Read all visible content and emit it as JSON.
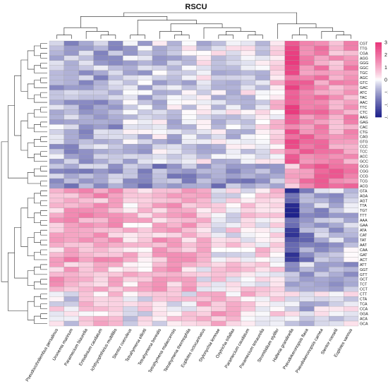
{
  "chart_data": {
    "type": "heatmap",
    "title": "RSCU",
    "colorbar": {
      "ticks": [
        3,
        2,
        1,
        0,
        -1,
        -2,
        -3
      ],
      "colors": {
        "low": "#1c1f8a",
        "mid": "#ffffff",
        "high": "#e8357a"
      }
    },
    "columns": [
      "Pseudocohnilembus persalinus",
      "Uronema marinum",
      "Paramecium biaurelia",
      "Entodinium caudatum",
      "Ichthyophthirius multifiliis",
      "Stentor coeruleus",
      "Tetrahymena elliotti",
      "Tetrahymena borealis",
      "Tetrahymena malaccensis",
      "Tetrahymena thermophila",
      "Euplotes octocarinatus",
      "Stylonychia lemnae",
      "Oxytricha trifallax",
      "Paramecium caudatum",
      "Paramecium tetraurelia",
      "Strombidium stylifer",
      "Halteria grandinella",
      "Pseudokeronopsis flava",
      "Pseudokeronopsis carnea",
      "Stentor roeselii",
      "Euplotes vannus"
    ],
    "rows": [
      "CGT",
      "TTG",
      "CGA",
      "AGG",
      "GGG",
      "GGC",
      "TGC",
      "AGC",
      "GTC",
      "GAC",
      "ATC",
      "TAC",
      "AAC",
      "TTC",
      "CTC",
      "AAG",
      "GAG",
      "CAC",
      "CTG",
      "CAG",
      "GTG",
      "CCC",
      "TCC",
      "ACC",
      "GCC",
      "GCG",
      "CGG",
      "CCG",
      "TCG",
      "ACG",
      "GTA",
      "AGA",
      "AGT",
      "TTA",
      "TGT",
      "TTT",
      "AAA",
      "GAA",
      "ATA",
      "CAT",
      "TAT",
      "AAT",
      "CAA",
      "GAT",
      "ACT",
      "ATT",
      "GGT",
      "GTT",
      "GCT",
      "TCT",
      "CCT",
      "CTT",
      "CTA",
      "TCA",
      "CCA",
      "GGA",
      "ACA",
      "GCA"
    ],
    "row_groups": [
      {
        "rows": "CGT-GCC",
        "values_by_column": [
          -0.7,
          -0.9,
          -0.8,
          -0.8,
          -0.9,
          -0.5,
          -0.6,
          -0.5,
          -0.5,
          -0.4,
          -0.3,
          -0.3,
          -0.3,
          -0.2,
          -0.2,
          0.4,
          2.2,
          1.7,
          1.5,
          1.2,
          1.3
        ]
      },
      {
        "rows": "GCG-ACG",
        "values_by_column": [
          -0.9,
          -1.0,
          -1.0,
          -1.0,
          -1.0,
          -1.0,
          -1.1,
          -1.1,
          -1.1,
          -1.1,
          -0.8,
          -1.2,
          -0.9,
          -1.1,
          -1.1,
          -0.8,
          1.1,
          1.5,
          2.0,
          1.9,
          1.6
        ]
      },
      {
        "rows": "GTA-ACT",
        "values_by_column": [
          0.8,
          1.2,
          1.2,
          1.1,
          1.0,
          0.5,
          0.6,
          0.9,
          0.9,
          0.8,
          0.5,
          -0.1,
          0.2,
          0.3,
          0.3,
          0.4,
          -2.3,
          -1.2,
          -0.9,
          -0.7,
          -0.5
        ]
      },
      {
        "rows": "ATT-CCT",
        "values_by_column": [
          0.9,
          0.7,
          0.8,
          0.8,
          0.7,
          0.5,
          0.7,
          0.9,
          0.9,
          0.8,
          0.1,
          0.3,
          0.4,
          0.3,
          0.3,
          0.4,
          -1.0,
          -0.8,
          -0.8,
          -0.7,
          -0.9
        ]
      },
      {
        "rows": "CTT-GCA",
        "values_by_column": [
          0.1,
          -0.3,
          0.5,
          0.7,
          0.6,
          -0.3,
          0.1,
          0.2,
          0.1,
          0.2,
          1.0,
          0.8,
          0.5,
          0.6,
          0.4,
          0.3,
          -0.2,
          -0.7,
          -0.3,
          -0.4,
          -0.1
        ]
      }
    ]
  }
}
